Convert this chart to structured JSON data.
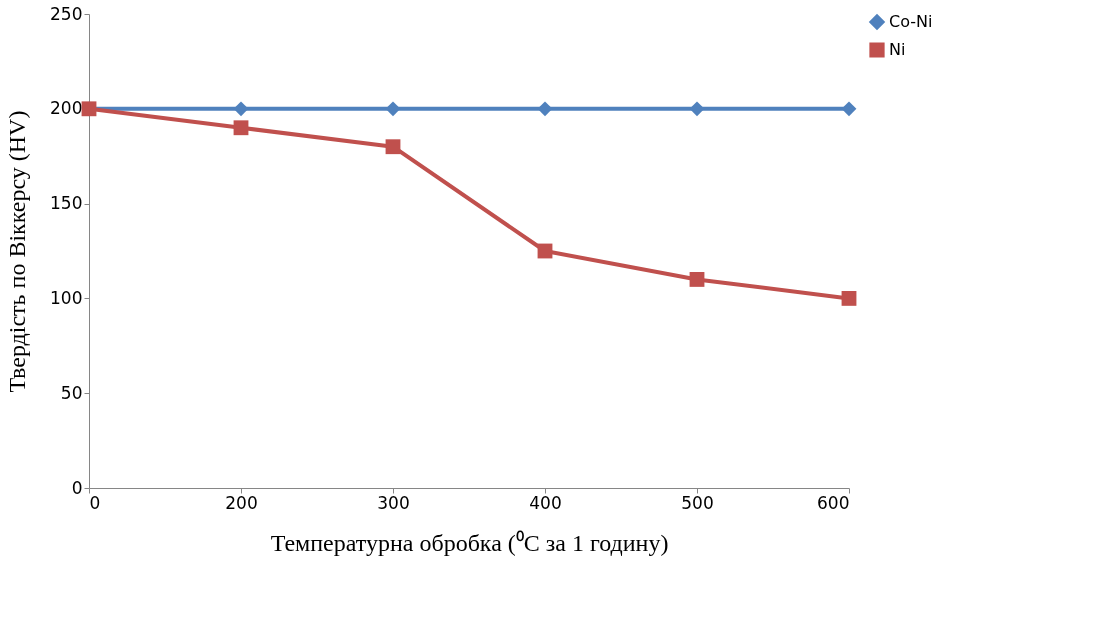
{
  "chart_data": {
    "type": "line",
    "xlabel": "Температурна обробка (⁰C за 1 годину)",
    "ylabel": "Твердість по Віккерсу (HV)",
    "categories": [
      "0",
      "200",
      "300",
      "400",
      "500",
      "600"
    ],
    "series": [
      {
        "name": "Co-Ni",
        "color": "#4f81bd",
        "marker": "diamond",
        "values": [
          200,
          200,
          200,
          200,
          200,
          200
        ]
      },
      {
        "name": "Ni",
        "color": "#c0504d",
        "marker": "square",
        "values": [
          200,
          190,
          180,
          125,
          110,
          100
        ]
      }
    ],
    "ylim": [
      0,
      250
    ],
    "yticks": [
      0,
      50,
      100,
      150,
      200,
      250
    ],
    "grid": false,
    "legend": "right",
    "line_style": "solid"
  }
}
